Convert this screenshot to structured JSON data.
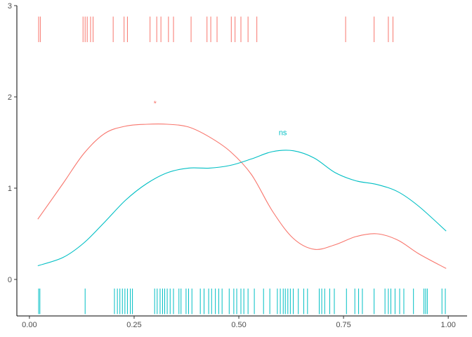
{
  "chart_data": {
    "type": "line",
    "title": "",
    "xlabel": "",
    "ylabel": "",
    "xlim": [
      -0.03,
      1.045
    ],
    "ylim": [
      -0.4,
      3.0
    ],
    "x_ticks": [
      0.0,
      0.25,
      0.5,
      0.75,
      1.0
    ],
    "x_tick_labels": [
      "0.00",
      "0.25",
      "0.50",
      "0.75",
      "1.00"
    ],
    "y_ticks": [
      0,
      1,
      2,
      3
    ],
    "y_tick_labels": [
      "0",
      "1",
      "2",
      "3"
    ],
    "grid": false,
    "legend": "none",
    "series": [
      {
        "color": "#F8766D",
        "x": [
          0.02,
          0.08,
          0.13,
          0.18,
          0.23,
          0.28,
          0.33,
          0.38,
          0.43,
          0.48,
          0.53,
          0.58,
          0.63,
          0.68,
          0.73,
          0.78,
          0.83,
          0.88,
          0.93,
          0.995
        ],
        "y": [
          0.66,
          1.05,
          1.38,
          1.6,
          1.68,
          1.7,
          1.7,
          1.67,
          1.56,
          1.4,
          1.15,
          0.75,
          0.45,
          0.33,
          0.38,
          0.47,
          0.5,
          0.43,
          0.28,
          0.12
        ]
      },
      {
        "color": "#00BFC4",
        "x": [
          0.02,
          0.08,
          0.13,
          0.18,
          0.23,
          0.28,
          0.33,
          0.38,
          0.43,
          0.48,
          0.53,
          0.58,
          0.63,
          0.68,
          0.73,
          0.78,
          0.83,
          0.88,
          0.93,
          0.995
        ],
        "y": [
          0.15,
          0.24,
          0.4,
          0.63,
          0.87,
          1.05,
          1.17,
          1.22,
          1.22,
          1.25,
          1.32,
          1.4,
          1.41,
          1.33,
          1.17,
          1.08,
          1.04,
          0.96,
          0.8,
          0.53
        ]
      }
    ],
    "rugs": [
      {
        "color": "#F8766D",
        "y_from": 2.6,
        "y_to": 2.88,
        "x": [
          0.022,
          0.026,
          0.128,
          0.133,
          0.138,
          0.146,
          0.152,
          0.2,
          0.226,
          0.234,
          0.288,
          0.304,
          0.314,
          0.332,
          0.344,
          0.386,
          0.424,
          0.433,
          0.448,
          0.482,
          0.491,
          0.505,
          0.522,
          0.543,
          0.755,
          0.823,
          0.857,
          0.868
        ]
      },
      {
        "color": "#00BFC4",
        "y_from": -0.38,
        "y_to": -0.1,
        "x": [
          0.022,
          0.025,
          0.133,
          0.203,
          0.21,
          0.216,
          0.222,
          0.228,
          0.234,
          0.241,
          0.246,
          0.299,
          0.305,
          0.312,
          0.318,
          0.323,
          0.329,
          0.336,
          0.344,
          0.357,
          0.362,
          0.374,
          0.38,
          0.388,
          0.408,
          0.417,
          0.428,
          0.435,
          0.444,
          0.452,
          0.46,
          0.477,
          0.488,
          0.495,
          0.505,
          0.512,
          0.522,
          0.537,
          0.559,
          0.574,
          0.592,
          0.599,
          0.606,
          0.611,
          0.617,
          0.623,
          0.63,
          0.642,
          0.655,
          0.664,
          0.692,
          0.698,
          0.705,
          0.717,
          0.728,
          0.757,
          0.777,
          0.786,
          0.795,
          0.823,
          0.849,
          0.857,
          0.863,
          0.873,
          0.884,
          0.894,
          0.917,
          0.942,
          0.946,
          0.95,
          0.985,
          0.993
        ]
      }
    ],
    "annotations": [
      {
        "text": "*",
        "x": 0.3,
        "y": 1.9,
        "color": "#F8766D"
      },
      {
        "text": "ns",
        "x": 0.605,
        "y": 1.58,
        "color": "#00BFC4"
      }
    ]
  }
}
